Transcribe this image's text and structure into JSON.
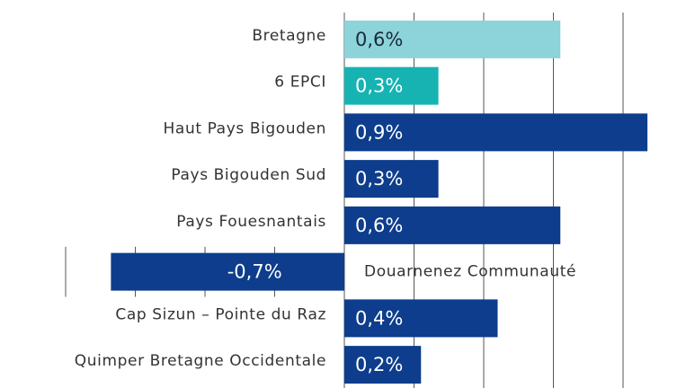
{
  "chart_data": {
    "type": "hbar",
    "categories": [
      "Bretagne",
      "6 EPCI",
      "Haut Pays Bigouden",
      "Pays Bigouden Sud",
      "Pays Fouesnantais",
      "Douarnenez Communauté",
      "Cap Sizun – Pointe du Raz",
      "Quimper Bretagne Occidentale"
    ],
    "values": [
      0.62,
      0.27,
      0.87,
      0.27,
      0.62,
      -0.67,
      0.44,
      0.22
    ],
    "value_labels": [
      "0,6%",
      "0,3%",
      "0,9%",
      "0,3%",
      "0,6%",
      "-0,7%",
      "0,4%",
      "0,2%"
    ],
    "colors": [
      "#8dd3da",
      "#17b3b3",
      "#0d3d8c",
      "#0d3d8c",
      "#0d3d8c",
      "#0d3d8c",
      "#0d3d8c",
      "#0d3d8c"
    ],
    "xlim": [
      -0.8,
      0.8
    ],
    "xticks": [
      -0.8,
      -0.6,
      -0.4,
      -0.2,
      0,
      0.2,
      0.4,
      0.6,
      0.8
    ],
    "grid": true
  }
}
